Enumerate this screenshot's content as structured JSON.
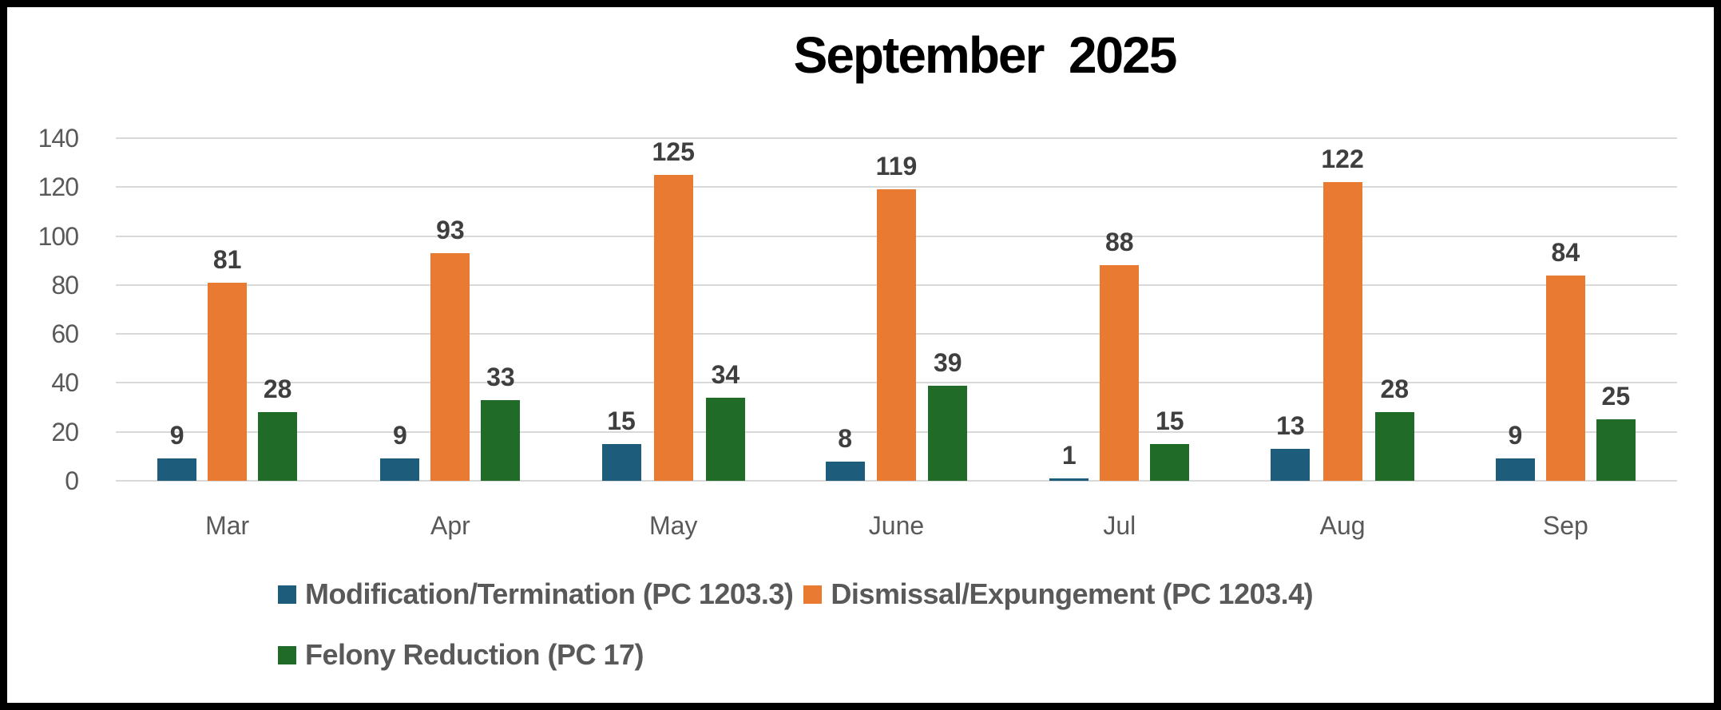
{
  "title": "September  2025",
  "chart_data": {
    "type": "bar",
    "title": "September  2025",
    "categories": [
      "Mar",
      "Apr",
      "May",
      "June",
      "Jul",
      "Aug",
      "Sep"
    ],
    "series": [
      {
        "name": "Modification/Termination (PC 1203.3)",
        "color": "#1e5c7c",
        "values": [
          9,
          9,
          15,
          8,
          1,
          13,
          9
        ]
      },
      {
        "name": "Dismissal/Expungement (PC 1203.4)",
        "color": "#e87a31",
        "values": [
          81,
          93,
          125,
          119,
          88,
          122,
          84
        ]
      },
      {
        "name": "Felony Reduction (PC 17)",
        "color": "#1f6b27",
        "values": [
          28,
          33,
          34,
          39,
          15,
          28,
          25
        ]
      }
    ],
    "ylim": [
      0,
      140
    ],
    "yticks": [
      0,
      20,
      40,
      60,
      80,
      100,
      120,
      140
    ],
    "grid": true,
    "data_labels": true,
    "legend_position": "bottom",
    "legend_rows": [
      [
        0,
        1
      ],
      [
        2
      ]
    ]
  },
  "colors": {
    "frame_border": "#000000",
    "background": "#ffffff",
    "gridline": "#d9d9d9",
    "axis_text": "#595959",
    "data_label_text": "#3f3f3f",
    "legend_text": "#595959",
    "title_text": "#000000"
  }
}
